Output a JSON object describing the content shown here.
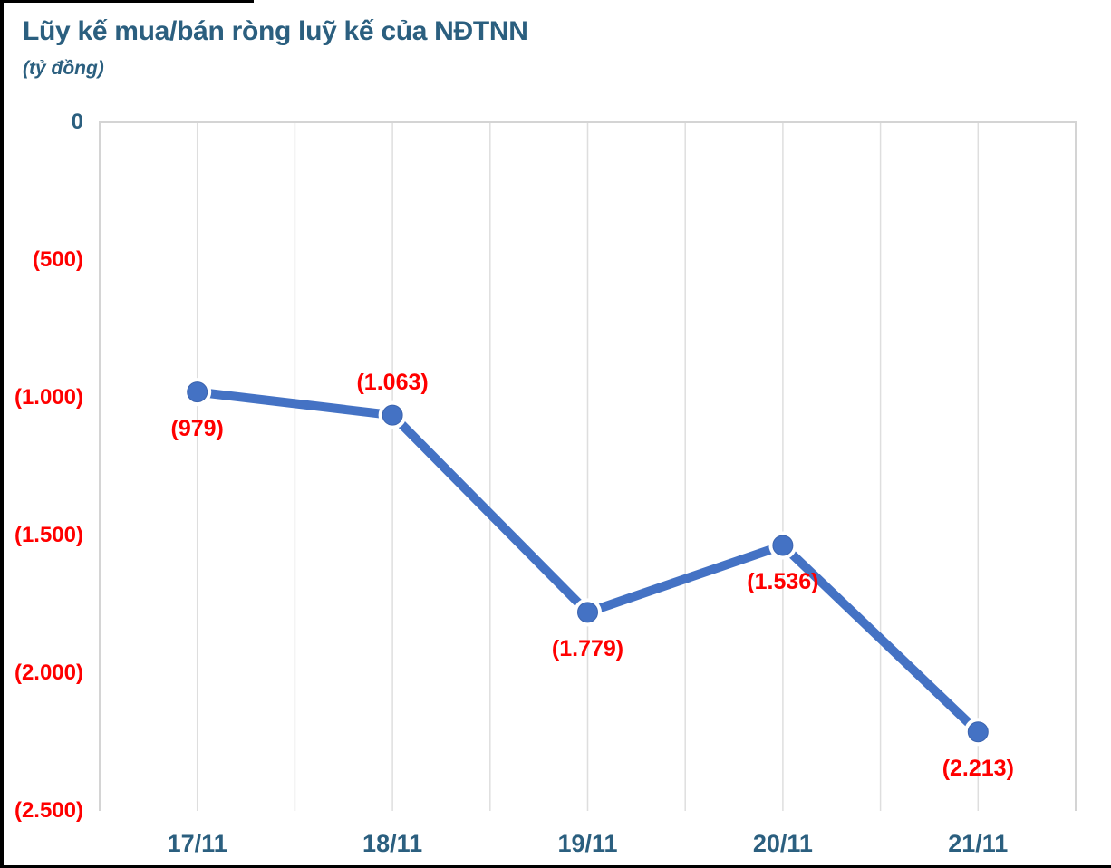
{
  "header": {
    "title": "Lũy kế mua/bán ròng luỹ kế của NĐTNN",
    "subtitle": "(tỷ đồng)"
  },
  "colors": {
    "title_text": "#2B5F7F",
    "axis_text": "#2B5F7F",
    "negative_text": "#FF0000",
    "line": "#4472C4",
    "marker_fill": "#4472C4",
    "marker_edge": "#3B63AE",
    "gridline": "#DEDEDE",
    "plot_border": "#D4D4D4",
    "frame": "#000000"
  },
  "chart_data": {
    "type": "line",
    "title": "Lũy kế mua/bán ròng luỹ kế của NĐTNN",
    "unit_label": "(tỷ đồng)",
    "categories": [
      "17/11",
      "18/11",
      "19/11",
      "20/11",
      "21/11"
    ],
    "values": [
      -979,
      -1063,
      -1779,
      -1536,
      -2213
    ],
    "point_labels": [
      "(979)",
      "(1.063)",
      "(1.779)",
      "(1.536)",
      "(2.213)"
    ],
    "point_label_positions": [
      "below",
      "above",
      "below",
      "below",
      "below"
    ],
    "ylim": [
      -2500,
      0
    ],
    "y_ticks": [
      {
        "value": 0,
        "label": "0",
        "negative": false
      },
      {
        "value": -500,
        "label": "(500)",
        "negative": true
      },
      {
        "value": -1000,
        "label": "(1.000)",
        "negative": true
      },
      {
        "value": -1500,
        "label": "(1.500)",
        "negative": true
      },
      {
        "value": -2000,
        "label": "(2.000)",
        "negative": true
      },
      {
        "value": -2500,
        "label": "(2.500)",
        "negative": true
      }
    ],
    "grid": "vertical-only",
    "vertical_gridline_count": 11,
    "legend": "none",
    "xlabel": "",
    "ylabel": ""
  }
}
